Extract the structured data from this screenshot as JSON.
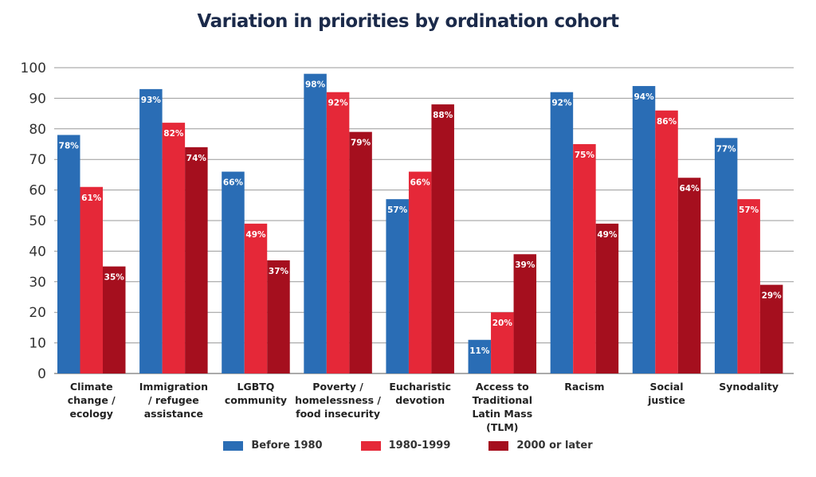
{
  "chart_data": {
    "type": "bar",
    "title": "Variation in priorities by ordination cohort",
    "xlabel": "",
    "ylabel": "",
    "ylim": [
      0,
      100
    ],
    "yticks": [
      0,
      10,
      20,
      30,
      40,
      50,
      60,
      70,
      80,
      90,
      100
    ],
    "grid": true,
    "legend_position": "bottom",
    "categories": [
      [
        "Climate",
        "change /",
        "ecology"
      ],
      [
        "Immigration",
        "/ refugee",
        "assistance"
      ],
      [
        "LGBTQ",
        "community"
      ],
      [
        "Poverty /",
        "homelessness /",
        "food insecurity"
      ],
      [
        "Eucharistic",
        "devotion"
      ],
      [
        "Access to",
        "Traditional",
        "Latin Mass",
        "(TLM)"
      ],
      [
        "Racism"
      ],
      [
        "Social",
        "justice"
      ],
      [
        "Synodality"
      ]
    ],
    "series": [
      {
        "name": "Before 1980",
        "color": "#2a6db5",
        "values": [
          78,
          93,
          66,
          98,
          57,
          11,
          92,
          94,
          77
        ]
      },
      {
        "name": "1980-1999",
        "color": "#e52838",
        "values": [
          61,
          82,
          49,
          92,
          66,
          20,
          75,
          86,
          57
        ]
      },
      {
        "name": "2000 or later",
        "color": "#a50f1e",
        "values": [
          35,
          74,
          37,
          79,
          88,
          39,
          49,
          64,
          29
        ]
      }
    ],
    "value_suffix": "%"
  }
}
